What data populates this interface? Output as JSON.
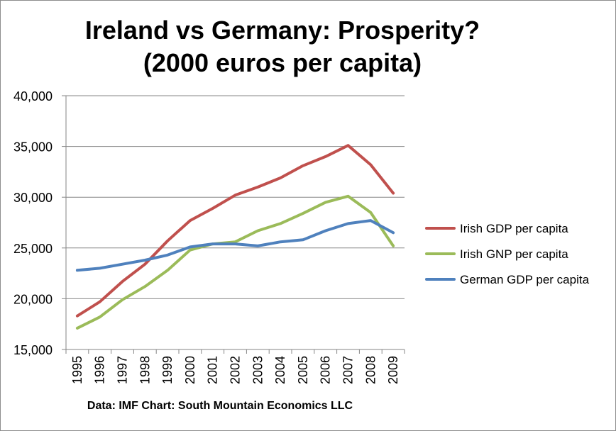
{
  "chart_data": {
    "type": "line",
    "title": "Ireland vs Germany: Prosperity?",
    "subtitle": "(2000 euros per capita)",
    "source_note": "Data: IMF Chart: South Mountain Economics LLC",
    "categories": [
      "1995",
      "1996",
      "1997",
      "1998",
      "1999",
      "2000",
      "2001",
      "2002",
      "2003",
      "2004",
      "2005",
      "2006",
      "2007",
      "2008",
      "2009"
    ],
    "yticks": [
      "15,000",
      "20,000",
      "25,000",
      "30,000",
      "35,000",
      "40,000"
    ],
    "ylim": [
      15000,
      40000
    ],
    "grid": true,
    "legend_position": "right",
    "series": [
      {
        "name": "Irish GDP per capita",
        "color": "#c0504d",
        "values": [
          18300,
          19700,
          21700,
          23400,
          25700,
          27700,
          28900,
          30200,
          31000,
          31900,
          33100,
          34000,
          35100,
          33200,
          30400
        ]
      },
      {
        "name": "Irish GNP per capita",
        "color": "#9bbb59",
        "values": [
          17100,
          18200,
          19900,
          21200,
          22800,
          24800,
          25400,
          25600,
          26700,
          27400,
          28400,
          29500,
          30100,
          28500,
          25200
        ]
      },
      {
        "name": "German GDP per capita",
        "color": "#4f81bd",
        "values": [
          22800,
          23000,
          23400,
          23800,
          24300,
          25100,
          25400,
          25400,
          25200,
          25600,
          25800,
          26700,
          27400,
          27700,
          26500
        ]
      }
    ]
  }
}
